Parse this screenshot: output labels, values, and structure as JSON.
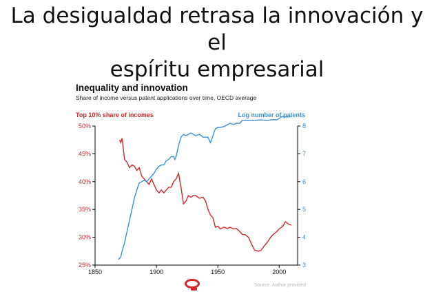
{
  "slide": {
    "title_line1": "La desigualdad retrasa la innovación y el",
    "title_line2": "espíritu empresarial"
  },
  "colors": {
    "left_series": "#d7242a",
    "right_series": "#3f8fd2",
    "axis": "#000000",
    "text": "#111111"
  },
  "chart_data": {
    "type": "line",
    "title": "Inequality and innovation",
    "subtitle": "Share of income versus patent applications over time, OECD average",
    "source": "Source: Author provided",
    "x_ticks": [
      1850,
      1900,
      1950,
      2000
    ],
    "xlim": [
      1850,
      2015
    ],
    "left_axis": {
      "label": "Top 10% share of incomes",
      "ticks": [
        "50%",
        "45%",
        "40%",
        "35%",
        "30%",
        "25%"
      ],
      "tick_values": [
        50,
        45,
        40,
        35,
        30,
        25
      ],
      "ylim": [
        25,
        50
      ]
    },
    "right_axis": {
      "label": "Log number of patents",
      "ticks": [
        "8",
        "7",
        "6",
        "5",
        "4",
        "3"
      ],
      "tick_values": [
        8,
        7,
        6,
        5,
        4,
        3
      ],
      "ylim": [
        3,
        8
      ]
    },
    "series": [
      {
        "name": "Top 10% share of incomes",
        "axis": "left",
        "x": [
          1870,
          1871,
          1872,
          1874,
          1876,
          1878,
          1880,
          1882,
          1884,
          1886,
          1888,
          1890,
          1892,
          1894,
          1896,
          1898,
          1900,
          1902,
          1904,
          1906,
          1908,
          1910,
          1912,
          1914,
          1916,
          1918,
          1920,
          1922,
          1924,
          1926,
          1928,
          1930,
          1932,
          1935,
          1938,
          1940,
          1942,
          1944,
          1946,
          1948,
          1950,
          1952,
          1955,
          1958,
          1960,
          1963,
          1965,
          1968,
          1970,
          1972,
          1975,
          1978,
          1980,
          1983,
          1985,
          1988,
          1990,
          1993,
          1995,
          1998,
          2000,
          2003,
          2005,
          2008,
          2010
        ],
        "values": [
          47.5,
          47.0,
          47.8,
          44.0,
          43.5,
          42.5,
          43.0,
          42.8,
          42.0,
          42.5,
          41.0,
          40.5,
          40.0,
          39.5,
          40.5,
          39.5,
          38.5,
          38.0,
          38.5,
          38.0,
          38.5,
          39.0,
          39.0,
          40.0,
          40.5,
          41.5,
          39.0,
          36.0,
          36.5,
          37.5,
          37.2,
          37.5,
          37.5,
          37.0,
          37.2,
          36.5,
          35.0,
          34.0,
          33.5,
          31.8,
          32.0,
          31.5,
          31.8,
          31.6,
          31.8,
          31.5,
          31.6,
          31.0,
          30.5,
          30.5,
          30.0,
          28.5,
          27.7,
          27.5,
          27.6,
          28.5,
          29.0,
          30.0,
          30.5,
          31.0,
          31.5,
          32.0,
          32.8,
          32.3,
          32.2
        ]
      },
      {
        "name": "Log number of patents",
        "axis": "right",
        "x": [
          1869,
          1871,
          1872,
          1874,
          1876,
          1878,
          1880,
          1882,
          1884,
          1886,
          1888,
          1890,
          1892,
          1894,
          1896,
          1898,
          1900,
          1902,
          1904,
          1906,
          1908,
          1910,
          1912,
          1914,
          1915,
          1916,
          1918,
          1920,
          1922,
          1924,
          1926,
          1928,
          1930,
          1932,
          1935,
          1938,
          1940,
          1942,
          1944,
          1946,
          1948,
          1950,
          1952,
          1955,
          1958,
          1960,
          1963,
          1965,
          1968,
          1970,
          1975,
          1980,
          1985,
          1990,
          1995,
          1998,
          2000,
          2003,
          2005,
          2008,
          2010
        ],
        "values": [
          3.2,
          3.3,
          3.5,
          3.8,
          4.2,
          4.6,
          5.0,
          5.4,
          5.7,
          5.95,
          6.0,
          6.05,
          6.0,
          6.1,
          6.2,
          6.3,
          6.45,
          6.55,
          6.6,
          6.6,
          6.75,
          6.8,
          6.9,
          6.9,
          6.8,
          6.9,
          7.3,
          7.6,
          7.7,
          7.65,
          7.7,
          7.75,
          7.7,
          7.65,
          7.7,
          7.6,
          7.6,
          7.6,
          7.4,
          7.65,
          7.9,
          7.95,
          7.95,
          7.98,
          8.05,
          8.1,
          8.05,
          8.1,
          8.1,
          8.2,
          8.2,
          8.2,
          8.22,
          8.2,
          8.23,
          8.22,
          8.28,
          8.35,
          8.32,
          8.33,
          8.35
        ]
      }
    ]
  }
}
